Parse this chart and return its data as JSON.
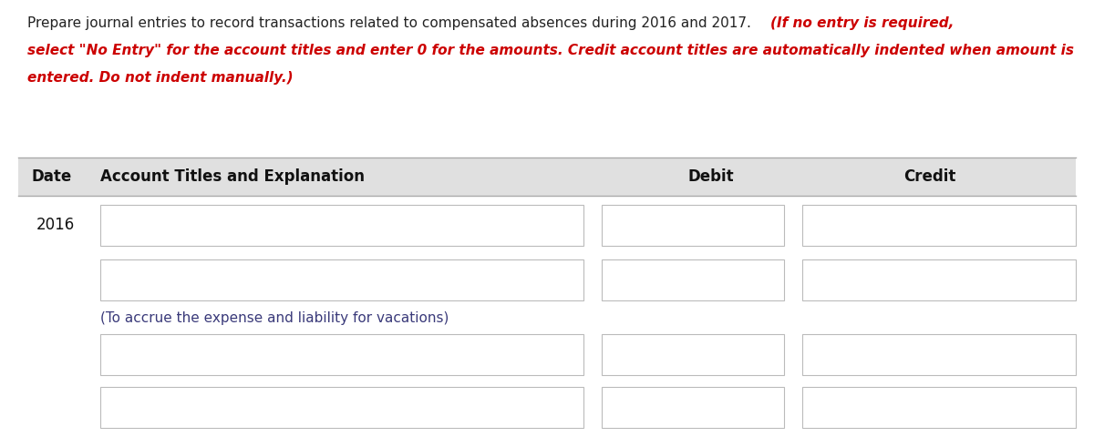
{
  "bg_color": "#ffffff",
  "header_bg": "#e0e0e0",
  "line1_normal": "Prepare journal entries to record transactions related to compensated absences during 2016 and 2017. ",
  "line1_red": "(If no entry is required,",
  "line2_red": "select \"No Entry\" for the account titles and enter 0 for the amounts. Credit account titles are automatically indented when amount is",
  "line3_red": "entered. Do not indent manually.)",
  "date_label": "2016",
  "note_text": "(To accrue the expense and liability for vacations)",
  "note_color": "#3a3a7a",
  "header_text_color": "#111111",
  "date_color": "#111111",
  "normal_text_color": "#222222",
  "red_color": "#cc0000",
  "box_border_color": "#bbbbbb",
  "box_fill_color": "#ffffff",
  "header_font_size": 12,
  "instruction_font_size": 11,
  "note_font_size": 11
}
